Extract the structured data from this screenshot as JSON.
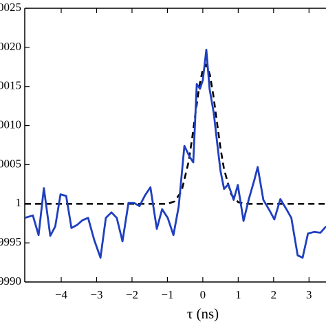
{
  "chart_data": {
    "type": "line",
    "xlabel": "τ (ns)",
    "xlim": [
      -5.03,
      3.48
    ],
    "ylim": [
      0.999,
      1.0025
    ],
    "xticks": [
      {
        "value": -4,
        "label": "−4"
      },
      {
        "value": -3,
        "label": "−3"
      },
      {
        "value": -2,
        "label": "−2"
      },
      {
        "value": -1,
        "label": "−1"
      },
      0,
      1,
      2,
      3
    ],
    "yticks": [
      {
        "value": 0.999,
        "label": "9990"
      },
      {
        "value": 0.9995,
        "label": "9995"
      },
      1,
      {
        "value": 1.0005,
        "label": "0005"
      },
      {
        "value": 1.001,
        "label": "0010"
      },
      {
        "value": 1.0015,
        "label": "0015"
      },
      {
        "value": 1.002,
        "label": "0020"
      },
      {
        "value": 1.0025,
        "label": "0025"
      }
    ],
    "series": [
      {
        "color": "#1f3fbf",
        "style": "solid",
        "x": [
          -5.03,
          -4.8,
          -4.64,
          -4.49,
          -4.31,
          -4.17,
          -4.02,
          -3.86,
          -3.71,
          -3.55,
          -3.4,
          -3.24,
          -3.07,
          -2.89,
          -2.74,
          -2.58,
          -2.43,
          -2.27,
          -2.1,
          -1.94,
          -1.79,
          -1.63,
          -1.48,
          -1.3,
          -1.15,
          -0.99,
          -0.83,
          -0.68,
          -0.52,
          -0.37,
          -0.27,
          -0.17,
          -0.08,
          0,
          0.1,
          0.19,
          0.31,
          0.41,
          0.5,
          0.6,
          0.72,
          0.87,
          0.99,
          1.15,
          1.3,
          1.46,
          1.55,
          1.71,
          1.88,
          2.02,
          2.19,
          2.35,
          2.5,
          2.68,
          2.82,
          2.97,
          3.15,
          3.32,
          3.48
        ],
        "values": [
          0.99982,
          0.99985,
          0.9996,
          1.0002,
          0.99959,
          0.99971,
          1.00012,
          1.0001,
          0.99969,
          0.99973,
          0.99979,
          0.99982,
          0.99954,
          0.99931,
          0.99982,
          0.99989,
          0.99982,
          0.99952,
          1.00001,
          1.00001,
          0.99997,
          1.00011,
          1.00021,
          0.99968,
          0.99993,
          0.99982,
          0.9996,
          0.99997,
          1.00074,
          1.0006,
          1.00053,
          1.00153,
          1.00147,
          1.00158,
          1.00197,
          1.00147,
          1.00116,
          1.00076,
          1.00042,
          1.00019,
          1.00025,
          1.00005,
          1.00024,
          0.99978,
          1.00006,
          1.00031,
          1.00047,
          1.00005,
          0.99992,
          0.9998,
          1.00006,
          0.99994,
          0.99982,
          0.99934,
          0.99931,
          0.99962,
          0.99964,
          0.99963,
          0.99971
        ]
      },
      {
        "color": "#000000",
        "style": "dashed",
        "x": [
          -5.03,
          -1.2,
          -1,
          -0.8,
          -0.6,
          -0.4,
          -0.3,
          -0.2,
          -0.1,
          0,
          0.1,
          0.2,
          0.3,
          0.4,
          0.5,
          0.6,
          0.8,
          1,
          1.2,
          3.48
        ],
        "values": [
          1,
          1,
          1,
          1.00003,
          1.00016,
          1.00054,
          1.00084,
          1.00118,
          1.0015,
          1.00172,
          1.00178,
          1.00165,
          1.00138,
          1.00104,
          1.00071,
          1.00044,
          1.00012,
          1.00002,
          1,
          1
        ]
      }
    ]
  }
}
